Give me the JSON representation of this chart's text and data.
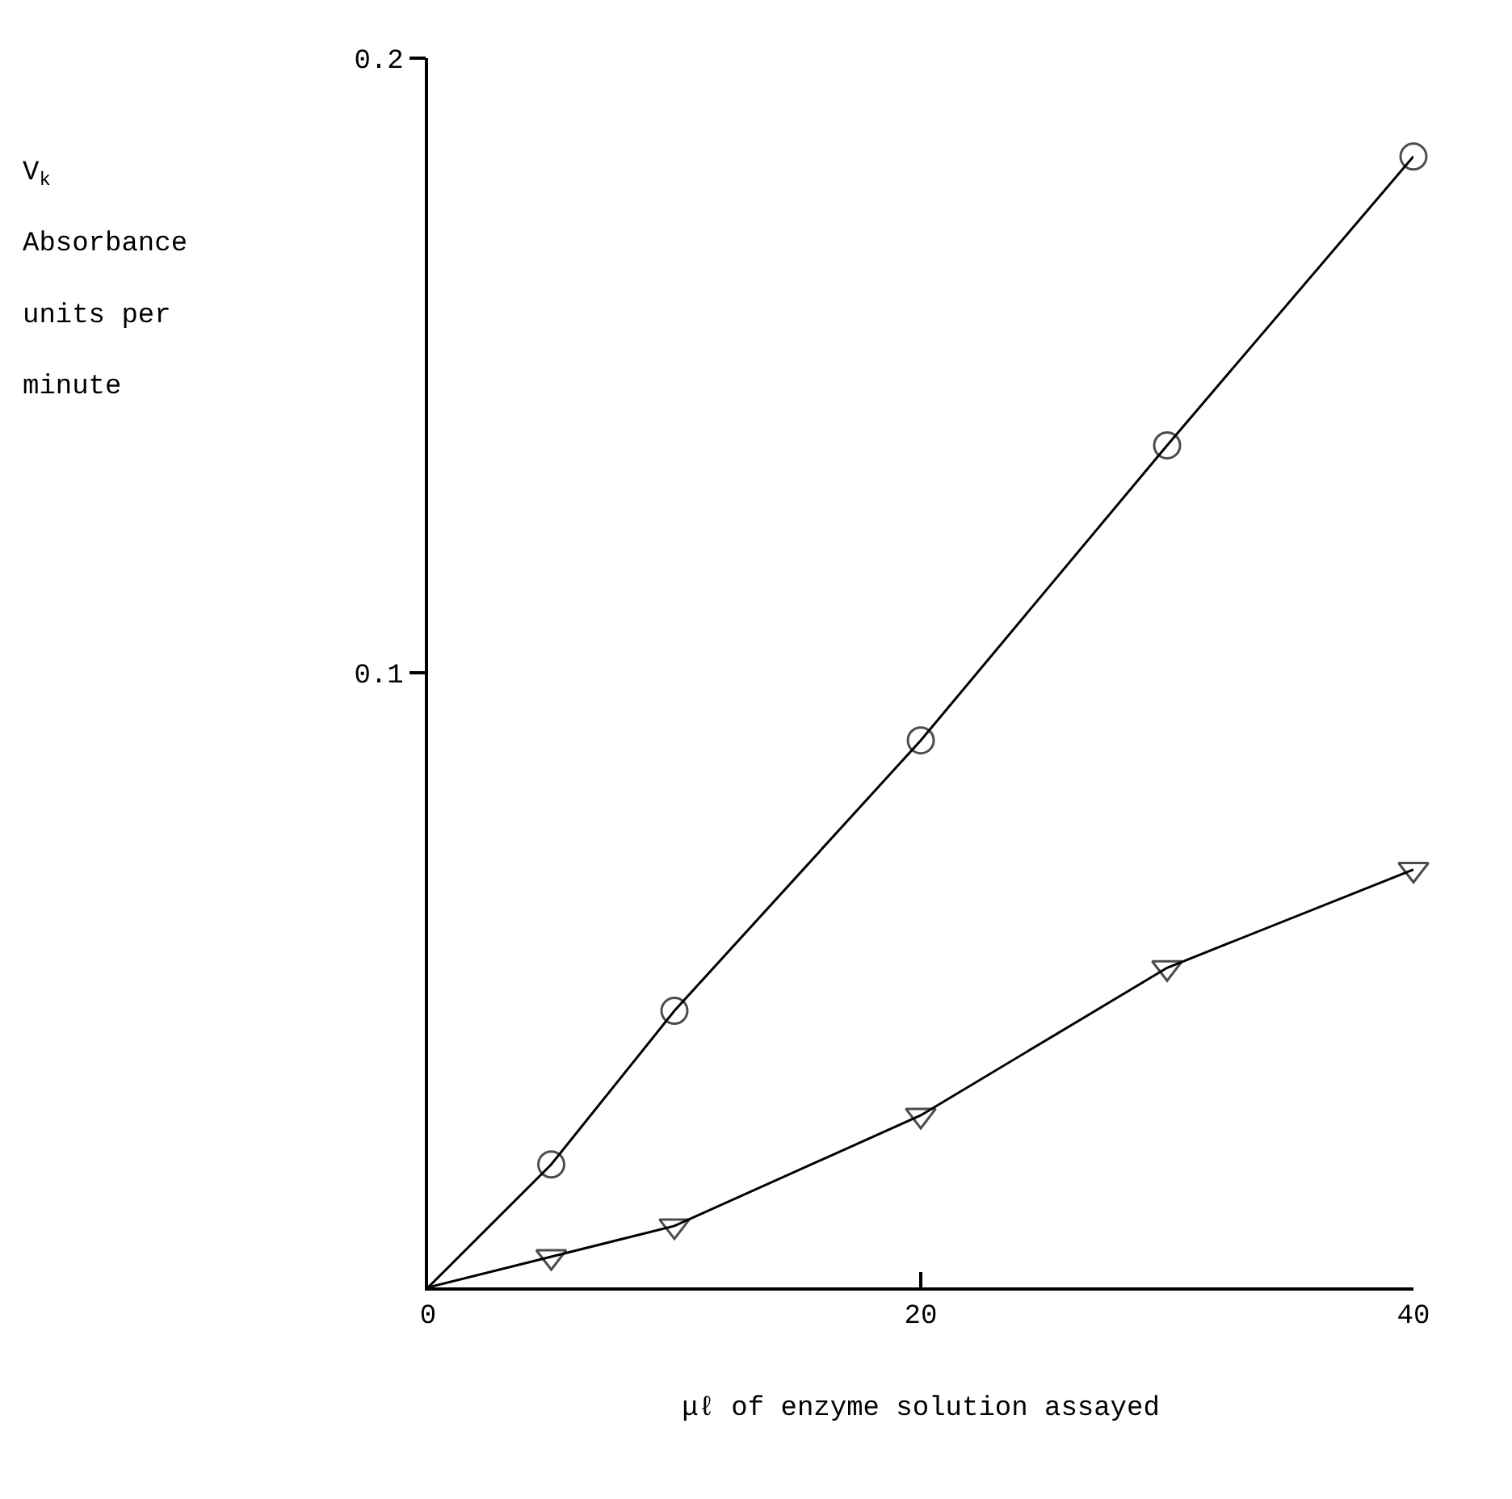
{
  "chart_data": {
    "type": "line",
    "xlabel": "μℓ of enzyme solution assayed",
    "ylabel": "V$_{k}$\nAbsorbance\nunits per\nminute",
    "xlim": [
      0,
      40
    ],
    "xticks": [
      {
        "value": 0,
        "label": "0"
      },
      20,
      40
    ],
    "ylim": [
      0,
      0.2
    ],
    "yticks": [
      0.1,
      0.2
    ],
    "series": [
      {
        "x": [
          0,
          5,
          10,
          20,
          30,
          40
        ],
        "values": [
          0,
          0.02,
          0.045,
          0.089,
          0.137,
          0.184
        ],
        "color": "#000000",
        "marker": "circle"
      },
      {
        "x": [
          0,
          5,
          10,
          20,
          30,
          40
        ],
        "values": [
          0,
          0.005,
          0.01,
          0.028,
          0.052,
          0.068
        ],
        "color": "#000000",
        "marker": "triangle"
      }
    ],
    "grid": false,
    "line_style": "solid"
  }
}
